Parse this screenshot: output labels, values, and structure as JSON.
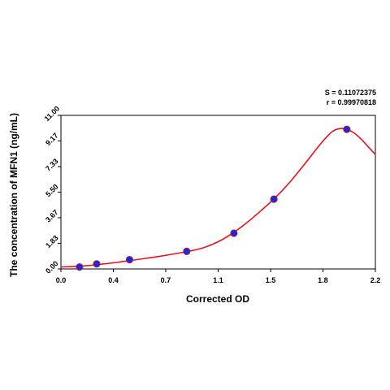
{
  "chart_data": {
    "type": "scatter",
    "xlabel": "Corrected OD",
    "ylabel": "The concentration of MFN1 (ng/mL)",
    "xlim": [
      0.0,
      2.2
    ],
    "ylim": [
      0.0,
      11.0
    ],
    "x_ticks": [
      "0.0",
      "0.4",
      "0.7",
      "1.1",
      "1.5",
      "1.8",
      "2.2"
    ],
    "y_ticks": [
      "0.00",
      "1.83",
      "3.67",
      "5.50",
      "7.33",
      "9.17",
      "11.00"
    ],
    "grid": false,
    "points": [
      {
        "x": 0.13,
        "y": 0.14
      },
      {
        "x": 0.25,
        "y": 0.36
      },
      {
        "x": 0.48,
        "y": 0.66
      },
      {
        "x": 0.88,
        "y": 1.26
      },
      {
        "x": 1.21,
        "y": 2.56
      },
      {
        "x": 1.49,
        "y": 5.0
      },
      {
        "x": 2.0,
        "y": 10.0
      }
    ],
    "fit_curve": [
      [
        0.0,
        0.14
      ],
      [
        0.1,
        0.18
      ],
      [
        0.2,
        0.25
      ],
      [
        0.3,
        0.36
      ],
      [
        0.4,
        0.48
      ],
      [
        0.5,
        0.62
      ],
      [
        0.6,
        0.77
      ],
      [
        0.7,
        0.92
      ],
      [
        0.8,
        1.09
      ],
      [
        0.9,
        1.28
      ],
      [
        1.0,
        1.53
      ],
      [
        1.1,
        1.95
      ],
      [
        1.2,
        2.55
      ],
      [
        1.3,
        3.31
      ],
      [
        1.4,
        4.18
      ],
      [
        1.5,
        5.11
      ],
      [
        1.6,
        6.2
      ],
      [
        1.7,
        7.45
      ],
      [
        1.8,
        8.75
      ],
      [
        1.85,
        9.35
      ],
      [
        1.9,
        9.85
      ],
      [
        1.95,
        10.05
      ],
      [
        2.0,
        10.0
      ],
      [
        2.05,
        9.75
      ],
      [
        2.1,
        9.3
      ],
      [
        2.15,
        8.75
      ],
      [
        2.2,
        8.2
      ]
    ],
    "marker_color": "#1a2bd6",
    "curve_color": "#e8121c",
    "stats": {
      "s_label": "S = 0.11072375",
      "r_label": "r = 0.99970818"
    }
  }
}
